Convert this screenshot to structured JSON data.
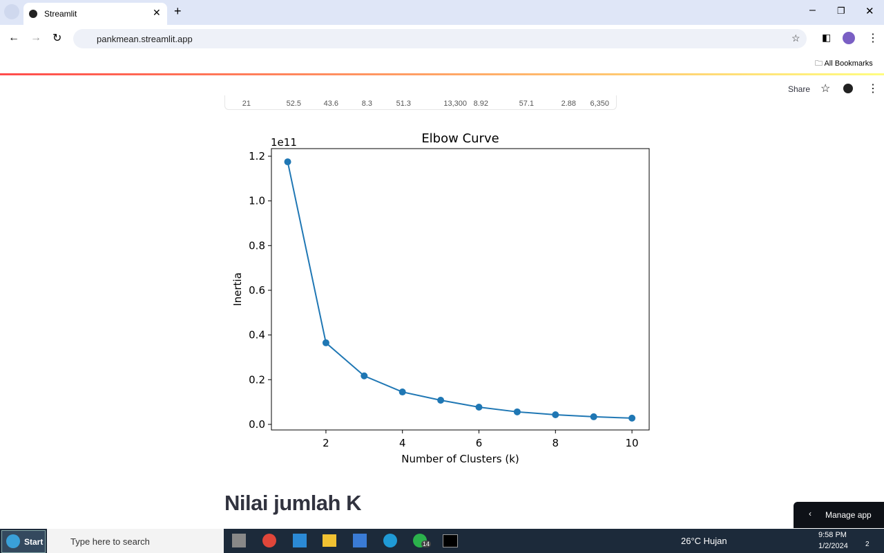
{
  "browser": {
    "tab_title": "Streamlit",
    "url": "pankmean.streamlit.app",
    "bookmarks": "All Bookmarks"
  },
  "app": {
    "share": "Share",
    "table_row": [
      "21",
      "52.5",
      "43.6",
      "8.3",
      "51.3",
      "13,300",
      "8.92",
      "57.1",
      "2.88",
      "6,350"
    ],
    "heading": "Nilai jumlah K",
    "manage": "Manage app"
  },
  "chart_data": {
    "type": "line",
    "title": "Elbow Curve",
    "x_label": "Number of Clusters (k)",
    "y_label": "Inertia",
    "y_offset_label": "1e11",
    "x": [
      1,
      2,
      3,
      4,
      5,
      6,
      7,
      8,
      9,
      10
    ],
    "series": [
      {
        "name": "Inertia",
        "color": "#1f77b4",
        "values": [
          1.175,
          0.365,
          0.217,
          0.145,
          0.108,
          0.077,
          0.056,
          0.043,
          0.034,
          0.028
        ]
      }
    ],
    "xlim": [
      0.575,
      10.45
    ],
    "ylim": [
      -0.025,
      1.234
    ],
    "xticks": [
      2,
      4,
      6,
      8,
      10
    ],
    "yticks": [
      {
        "value": 0,
        "label": "0.0"
      },
      0.2,
      0.4,
      0.6,
      0.8,
      {
        "value": 1,
        "label": "1.0"
      },
      1.2
    ],
    "marker": true
  },
  "taskbar": {
    "start": "Start",
    "search": "Type here to search",
    "weather": "26°C  Hujan",
    "time": "9:58 PM",
    "date": "1/2/2024",
    "whatsapp_badge": "14",
    "notif_badge": "2"
  }
}
